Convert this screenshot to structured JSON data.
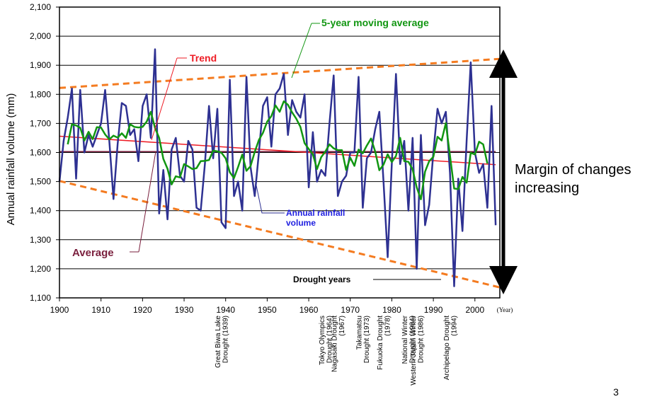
{
  "chart_data": {
    "type": "line",
    "ylabel": "Annual rainfall volume (mm)",
    "x_unit": "(Year)",
    "xlim": [
      1900,
      2006
    ],
    "ylim": [
      1100,
      2100
    ],
    "x_ticks": [
      "1900",
      "1910",
      "1920",
      "1930",
      "1940",
      "1950",
      "1960",
      "1970",
      "1980",
      "1990",
      "2000"
    ],
    "y_ticks": [
      "1,100",
      "1,200",
      "1,300",
      "1,400",
      "1,500",
      "1,600",
      "1,700",
      "1,800",
      "1,900",
      "2,000",
      "2,100"
    ],
    "grid": "horizontal",
    "series": [
      {
        "name": "Annual rainfall volume",
        "color": "#2e3192",
        "x": [
          1900,
          1901,
          1902,
          1903,
          1904,
          1905,
          1906,
          1907,
          1908,
          1909,
          1910,
          1911,
          1912,
          1913,
          1914,
          1915,
          1916,
          1917,
          1918,
          1919,
          1920,
          1921,
          1922,
          1923,
          1924,
          1925,
          1926,
          1927,
          1928,
          1929,
          1930,
          1931,
          1932,
          1933,
          1934,
          1935,
          1936,
          1937,
          1938,
          1939,
          1940,
          1941,
          1942,
          1943,
          1944,
          1945,
          1946,
          1947,
          1948,
          1949,
          1950,
          1951,
          1952,
          1953,
          1954,
          1955,
          1956,
          1957,
          1958,
          1959,
          1960,
          1961,
          1962,
          1963,
          1964,
          1965,
          1966,
          1967,
          1968,
          1969,
          1970,
          1971,
          1972,
          1973,
          1974,
          1975,
          1976,
          1977,
          1978,
          1979,
          1980,
          1981,
          1982,
          1983,
          1984,
          1985,
          1986,
          1987,
          1988,
          1989,
          1990,
          1991,
          1992,
          1993,
          1994,
          1995,
          1996,
          1997,
          1998,
          1999,
          2000,
          2001,
          2002,
          2003,
          2004,
          2005
        ],
        "values": [
          1500,
          1640,
          1720,
          1820,
          1510,
          1815,
          1600,
          1660,
          1620,
          1660,
          1700,
          1815,
          1640,
          1440,
          1630,
          1770,
          1760,
          1660,
          1680,
          1570,
          1760,
          1800,
          1650,
          1955,
          1390,
          1540,
          1370,
          1610,
          1650,
          1520,
          1500,
          1640,
          1610,
          1410,
          1400,
          1560,
          1760,
          1580,
          1750,
          1360,
          1340,
          1850,
          1450,
          1500,
          1400,
          1860,
          1550,
          1450,
          1600,
          1760,
          1790,
          1620,
          1800,
          1820,
          1870,
          1660,
          1780,
          1740,
          1720,
          1800,
          1480,
          1670,
          1500,
          1540,
          1520,
          1700,
          1865,
          1450,
          1500,
          1520,
          1600,
          1600,
          1860,
          1410,
          1580,
          1600,
          1680,
          1740,
          1500,
          1240,
          1560,
          1870,
          1560,
          1640,
          1400,
          1650,
          1200,
          1660,
          1350,
          1420,
          1600,
          1750,
          1700,
          1740,
          1530,
          1140,
          1510,
          1330,
          1640,
          1910,
          1600,
          1530,
          1560,
          1410,
          1760,
          1350
        ]
      },
      {
        "name": "5-year moving average",
        "color": "#119611",
        "x": [
          1902,
          1903,
          1904,
          1905,
          1906,
          1907,
          1908,
          1909,
          1910,
          1911,
          1912,
          1913,
          1914,
          1915,
          1916,
          1917,
          1918,
          1919,
          1920,
          1921,
          1922,
          1923,
          1924,
          1925,
          1926,
          1927,
          1928,
          1929,
          1930,
          1931,
          1932,
          1933,
          1934,
          1935,
          1936,
          1937,
          1938,
          1939,
          1940,
          1941,
          1942,
          1943,
          1944,
          1945,
          1946,
          1947,
          1948,
          1949,
          1950,
          1951,
          1952,
          1953,
          1954,
          1955,
          1956,
          1957,
          1958,
          1959,
          1960,
          1961,
          1962,
          1963,
          1964,
          1965,
          1966,
          1967,
          1968,
          1969,
          1970,
          1971,
          1972,
          1973,
          1974,
          1975,
          1976,
          1977,
          1978,
          1979,
          1980,
          1981,
          1982,
          1983,
          1984,
          1985,
          1986,
          1987,
          1988,
          1989,
          1990,
          1991,
          1992,
          1993,
          1994,
          1995,
          1996,
          1997,
          1998,
          1999,
          2000,
          2001,
          2002,
          2003
        ],
        "values": [
          1628,
          1697,
          1693,
          1685,
          1641,
          1671,
          1646,
          1687,
          1686,
          1662,
          1645,
          1658,
          1651,
          1666,
          1650,
          1697,
          1688,
          1686,
          1688,
          1706,
          1740,
          1684,
          1650,
          1578,
          1544,
          1490,
          1518,
          1514,
          1560,
          1552,
          1543,
          1546,
          1570,
          1571,
          1574,
          1606,
          1604,
          1599,
          1580,
          1532,
          1512,
          1550,
          1593,
          1537,
          1553,
          1602,
          1643,
          1668,
          1706,
          1725,
          1762,
          1740,
          1776,
          1764,
          1738,
          1716,
          1688,
          1632,
          1612,
          1594,
          1543,
          1584,
          1603,
          1628,
          1614,
          1608,
          1608,
          1540,
          1582,
          1554,
          1610,
          1597,
          1624,
          1648,
          1603,
          1539,
          1558,
          1594,
          1567,
          1588,
          1650,
          1570,
          1568,
          1542,
          1480,
          1439,
          1534,
          1570,
          1585,
          1654,
          1641,
          1701,
          1589,
          1476,
          1474,
          1516,
          1496,
          1599,
          1593,
          1637,
          1628,
          1562
        ]
      },
      {
        "name": "Average",
        "color": "#7a1f3d",
        "x": [
          1900,
          2005
        ],
        "values": [
          1603,
          1603
        ]
      },
      {
        "name": "Trend",
        "color": "#ee1c25",
        "x": [
          1900,
          2005
        ],
        "values": [
          1656,
          1558
        ]
      },
      {
        "name": "Upper envelope",
        "color": "#f47b20",
        "x": [
          1900,
          2006
        ],
        "values": [
          1822,
          1922
        ]
      },
      {
        "name": "Lower envelope",
        "color": "#f47b20",
        "x": [
          1900,
          2006
        ],
        "values": [
          1502,
          1136
        ]
      }
    ],
    "annotations": {
      "moving_average": "5-year moving average",
      "trend": "Trend",
      "average": "Average",
      "annual": [
        "Annual rainfall",
        "volume"
      ],
      "drought_years": "Drought years",
      "margin": [
        "Margin of changes",
        "increasing"
      ]
    },
    "drought_events": [
      {
        "year": 1939,
        "lines": [
          "Great Biwa Lake",
          "Drought (1939)"
        ]
      },
      {
        "year": 1964,
        "lines": [
          "Tokyo Olympics",
          "Drought (1964)"
        ]
      },
      {
        "year": 1967,
        "lines": [
          "Nagasaki Drought",
          "(1967)"
        ]
      },
      {
        "year": 1973,
        "lines": [
          "Takamatsu",
          "Drought (1973)"
        ]
      },
      {
        "year": 1978,
        "lines": [
          "Fukuoka Drought",
          "(1978)"
        ]
      },
      {
        "year": 1984,
        "lines": [
          "National Winter",
          "Drought (1984)"
        ]
      },
      {
        "year": 1986,
        "lines": [
          "Western Japan Winter",
          "Drought (1986)"
        ]
      },
      {
        "year": 1994,
        "lines": [
          "Archipelago Drought",
          "(1994)"
        ]
      }
    ],
    "page_number": "3"
  }
}
